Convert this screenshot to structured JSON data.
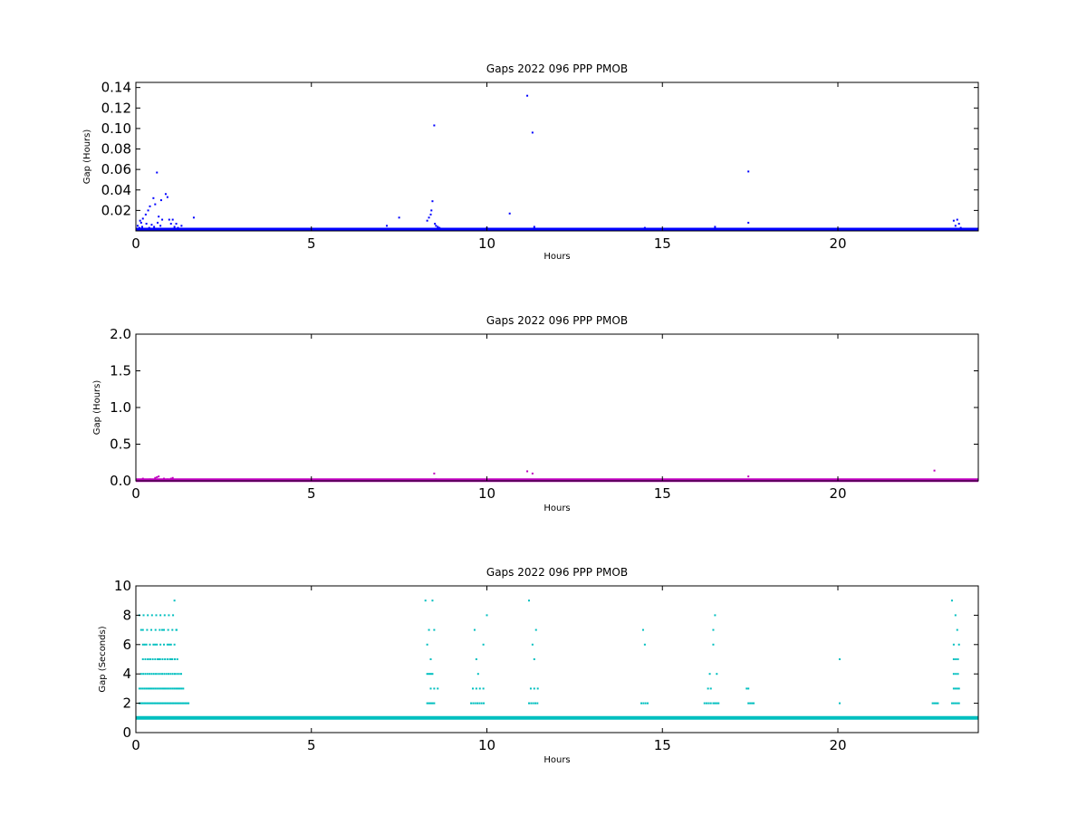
{
  "chart_data": [
    {
      "type": "scatter",
      "title": "Gaps 2022 096 PPP  PMOB",
      "xlabel": "Hours",
      "ylabel": "Gap (Hours)",
      "xlim": [
        0,
        24
      ],
      "ylim": [
        0,
        0.145
      ],
      "xticks": [
        0,
        5,
        10,
        15,
        20
      ],
      "yticks": [
        0.02,
        0.04,
        0.06,
        0.08,
        0.1,
        0.12,
        0.14
      ],
      "ytick_labels": [
        "0.02",
        "0.04",
        "0.06",
        "0.08",
        "0.10",
        "0.12",
        "0.14"
      ],
      "color": "#0000ff",
      "baseline": {
        "y": 0.0013,
        "x_start": 0,
        "x_end": 24
      },
      "series": [
        {
          "x": [
            0.05,
            0.1,
            0.12,
            0.15,
            0.18,
            0.2,
            0.25,
            0.28,
            0.3,
            0.35,
            0.38,
            0.4,
            0.45,
            0.5,
            0.52,
            0.55,
            0.6,
            0.62,
            0.65,
            0.7,
            0.72,
            0.75,
            0.8,
            0.85,
            0.9,
            0.95,
            1.0,
            1.05,
            1.1,
            1.15,
            1.2,
            1.3,
            1.65,
            7.15,
            7.5,
            8.3,
            8.35,
            8.4,
            8.42,
            8.45,
            8.5,
            8.52,
            8.55,
            8.6,
            8.65,
            10.0,
            10.65,
            11.15,
            11.3,
            11.35,
            14.5,
            16.5,
            16.55,
            17.45,
            17.45,
            23.3,
            23.35,
            23.4,
            23.45,
            23.5
          ],
          "y": [
            0.005,
            0.003,
            0.01,
            0.008,
            0.004,
            0.012,
            0.002,
            0.016,
            0.007,
            0.02,
            0.003,
            0.024,
            0.006,
            0.032,
            0.004,
            0.026,
            0.057,
            0.008,
            0.014,
            0.005,
            0.03,
            0.011,
            0.002,
            0.036,
            0.033,
            0.011,
            0.007,
            0.011,
            0.004,
            0.007,
            0.003,
            0.005,
            0.013,
            0.005,
            0.013,
            0.01,
            0.013,
            0.016,
            0.02,
            0.029,
            0.103,
            0.007,
            0.005,
            0.004,
            0.003,
            0.003,
            0.017,
            0.132,
            0.096,
            0.004,
            0.003,
            0.004,
            0.002,
            0.058,
            0.008,
            0.01,
            0.005,
            0.011,
            0.007,
            0.003
          ]
        }
      ]
    },
    {
      "type": "scatter",
      "title": "Gaps 2022 096 PPP  PMOB",
      "xlabel": "Hours",
      "ylabel": "Gap (Hours)",
      "xlim": [
        0,
        24
      ],
      "ylim": [
        0,
        2.0
      ],
      "xticks": [
        0,
        5,
        10,
        15,
        20
      ],
      "yticks": [
        0.0,
        0.5,
        1.0,
        1.5,
        2.0
      ],
      "ytick_labels": [
        "0.0",
        "0.5",
        "1.0",
        "1.5",
        "2.0"
      ],
      "color": "#bf00bf",
      "baseline": {
        "y": 0.01,
        "x_start": 0,
        "x_end": 24
      },
      "series": [
        {
          "x": [
            0.2,
            0.4,
            0.55,
            0.6,
            0.65,
            0.8,
            0.9,
            1.0,
            1.05,
            8.5,
            8.55,
            11.15,
            11.3,
            17.45,
            22.75
          ],
          "y": [
            0.03,
            0.02,
            0.04,
            0.05,
            0.06,
            0.03,
            0.02,
            0.03,
            0.04,
            0.1,
            0.02,
            0.13,
            0.1,
            0.06,
            0.14
          ]
        }
      ]
    },
    {
      "type": "scatter",
      "title": "Gaps 2022 096 PPP  PMOB",
      "xlabel": "Hours",
      "ylabel": "Gap (Seconds)",
      "xlim": [
        0,
        24
      ],
      "ylim": [
        0,
        10
      ],
      "xticks": [
        0,
        5,
        10,
        15,
        20
      ],
      "yticks": [
        0,
        2,
        4,
        6,
        8,
        10
      ],
      "ytick_labels": [
        "0",
        "2",
        "4",
        "6",
        "8",
        "10"
      ],
      "color": "#00bfbf",
      "baseline": {
        "y": 1,
        "x_start": 0,
        "x_end": 24
      },
      "clusters": [
        {
          "y": 2,
          "from": 0.1,
          "to": 1.5,
          "step": 0.04
        },
        {
          "y": 3,
          "from": 0.1,
          "to": 1.35,
          "step": 0.05
        },
        {
          "y": 4,
          "from": 0.15,
          "to": 1.3,
          "step": 0.06
        },
        {
          "y": 5,
          "from": 0.2,
          "to": 1.2,
          "step": 0.07
        },
        {
          "y": 6,
          "from": 0.2,
          "to": 1.1,
          "step": 0.1
        },
        {
          "y": 7,
          "from": 0.2,
          "to": 1.2,
          "step": 0.12
        },
        {
          "y": 8,
          "from": 0.1,
          "to": 1.15,
          "step": 0.12
        },
        {
          "y": 2,
          "from": 8.3,
          "to": 8.5,
          "step": 0.05
        },
        {
          "y": 3,
          "from": 8.4,
          "to": 8.6,
          "step": 0.1
        },
        {
          "y": 4,
          "from": 8.3,
          "to": 8.45,
          "step": 0.05
        },
        {
          "y": 2,
          "from": 9.55,
          "to": 9.95,
          "step": 0.06
        },
        {
          "y": 3,
          "from": 9.6,
          "to": 9.9,
          "step": 0.1
        },
        {
          "y": 2,
          "from": 11.2,
          "to": 11.45,
          "step": 0.06
        },
        {
          "y": 3,
          "from": 11.25,
          "to": 11.45,
          "step": 0.1
        },
        {
          "y": 2,
          "from": 14.4,
          "to": 14.6,
          "step": 0.06
        },
        {
          "y": 2,
          "from": 16.2,
          "to": 16.4,
          "step": 0.06
        },
        {
          "y": 3,
          "from": 16.3,
          "to": 16.45,
          "step": 0.08
        },
        {
          "y": 2,
          "from": 16.45,
          "to": 16.6,
          "step": 0.05
        },
        {
          "y": 2,
          "from": 17.45,
          "to": 17.6,
          "step": 0.05
        },
        {
          "y": 2,
          "from": 22.7,
          "to": 22.85,
          "step": 0.05
        },
        {
          "y": 2,
          "from": 23.25,
          "to": 23.45,
          "step": 0.05
        },
        {
          "y": 3,
          "from": 23.3,
          "to": 23.45,
          "step": 0.05
        },
        {
          "y": 4,
          "from": 23.3,
          "to": 23.45,
          "step": 0.06
        },
        {
          "y": 5,
          "from": 23.3,
          "to": 23.45,
          "step": 0.06
        }
      ],
      "series": [
        {
          "x": [
            0.15,
            0.25,
            0.55,
            0.75,
            0.95,
            1.1,
            1.15,
            0.35,
            0.65,
            1.0,
            8.25,
            8.3,
            8.35,
            8.4,
            8.45,
            8.5,
            9.65,
            9.75,
            9.7,
            9.9,
            10.0,
            11.2,
            11.3,
            11.35,
            11.4,
            14.45,
            14.5,
            16.35,
            16.45,
            16.45,
            16.5,
            16.55,
            17.4,
            17.45,
            20.05,
            20.05,
            23.25,
            23.3,
            23.35,
            23.4,
            23.45
          ],
          "y": [
            7,
            6,
            6,
            7,
            6,
            9,
            7,
            5,
            5,
            5,
            9,
            6,
            7,
            5,
            9,
            7,
            7,
            4,
            5,
            6,
            8,
            9,
            6,
            5,
            7,
            7,
            6,
            4,
            6,
            7,
            8,
            4,
            3,
            3,
            5,
            2,
            9,
            6,
            8,
            7,
            6
          ]
        }
      ]
    }
  ]
}
